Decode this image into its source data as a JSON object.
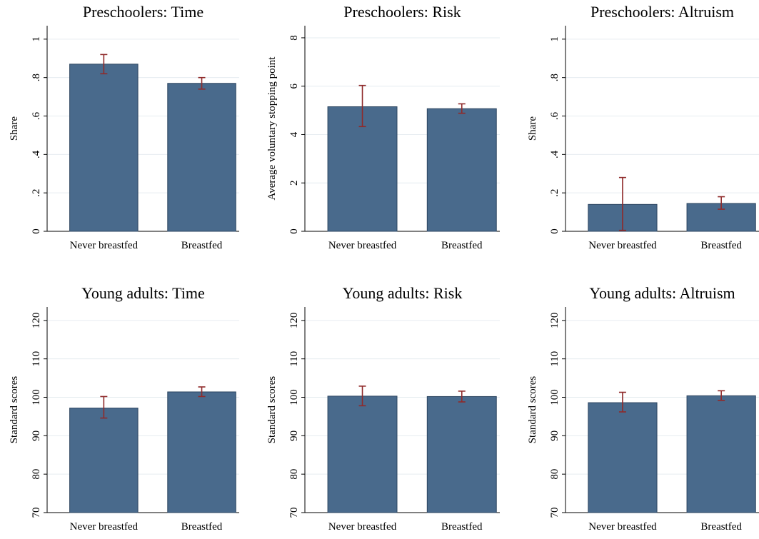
{
  "chart_data": [
    {
      "type": "bar",
      "title": "Preschoolers: Time",
      "ylabel": "Share",
      "categories": [
        "Never breastfed",
        "Breastfed"
      ],
      "values": [
        0.87,
        0.77
      ],
      "error_low": [
        0.82,
        0.74
      ],
      "error_high": [
        0.92,
        0.8
      ],
      "ylim": [
        0,
        1.07
      ],
      "yticks": [
        0,
        0.2,
        0.4,
        0.6,
        0.8,
        1
      ],
      "ytick_labels": [
        "0",
        ".2",
        ".4",
        ".6",
        ".8",
        "1"
      ]
    },
    {
      "type": "bar",
      "title": "Preschoolers: Risk",
      "ylabel": "Average voluntary stopping point",
      "categories": [
        "Never breastfed",
        "Breastfed"
      ],
      "values": [
        5.15,
        5.07
      ],
      "error_low": [
        4.33,
        4.88
      ],
      "error_high": [
        6.03,
        5.27
      ],
      "ylim": [
        0,
        8.5
      ],
      "yticks": [
        0,
        2,
        4,
        6,
        8
      ],
      "ytick_labels": [
        "0",
        "2",
        "4",
        "6",
        "8"
      ]
    },
    {
      "type": "bar",
      "title": "Preschoolers: Altruism",
      "ylabel": "Share",
      "categories": [
        "Never breastfed",
        "Breastfed"
      ],
      "values": [
        0.14,
        0.145
      ],
      "error_low": [
        0.005,
        0.115
      ],
      "error_high": [
        0.28,
        0.18
      ],
      "ylim": [
        0,
        1.07
      ],
      "yticks": [
        0,
        0.2,
        0.4,
        0.6,
        0.8,
        1
      ],
      "ytick_labels": [
        "0",
        ".2",
        ".4",
        ".6",
        ".8",
        "1"
      ]
    },
    {
      "type": "bar",
      "title": "Young adults: Time",
      "ylabel": "Standard scores",
      "categories": [
        "Never breastfed",
        "Breastfed"
      ],
      "values": [
        97.2,
        101.4
      ],
      "error_low": [
        94.6,
        100.2
      ],
      "error_high": [
        100.2,
        102.7
      ],
      "ylim": [
        70,
        123.5
      ],
      "yticks": [
        70,
        80,
        90,
        100,
        110,
        120
      ],
      "ytick_labels": [
        "70",
        "80",
        "90",
        "100",
        "110",
        "120"
      ]
    },
    {
      "type": "bar",
      "title": "Young adults: Risk",
      "ylabel": "Standard scores",
      "categories": [
        "Never breastfed",
        "Breastfed"
      ],
      "values": [
        100.3,
        100.2
      ],
      "error_low": [
        97.8,
        98.8
      ],
      "error_high": [
        102.9,
        101.6
      ],
      "ylim": [
        70,
        123.5
      ],
      "yticks": [
        70,
        80,
        90,
        100,
        110,
        120
      ],
      "ytick_labels": [
        "70",
        "80",
        "90",
        "100",
        "110",
        "120"
      ]
    },
    {
      "type": "bar",
      "title": "Young adults: Altruism",
      "ylabel": "Standard scores",
      "categories": [
        "Never breastfed",
        "Breastfed"
      ],
      "values": [
        98.6,
        100.4
      ],
      "error_low": [
        96.2,
        99.2
      ],
      "error_high": [
        101.3,
        101.7
      ],
      "ylim": [
        70,
        123.5
      ],
      "yticks": [
        70,
        80,
        90,
        100,
        110,
        120
      ],
      "ytick_labels": [
        "70",
        "80",
        "90",
        "100",
        "110",
        "120"
      ]
    }
  ],
  "colors": {
    "bar_fill": "#496a8c",
    "bar_stroke": "#2c4560",
    "error_bar": "#8f2a2a",
    "grid": "#e6ecf0",
    "axis": "#000000"
  }
}
